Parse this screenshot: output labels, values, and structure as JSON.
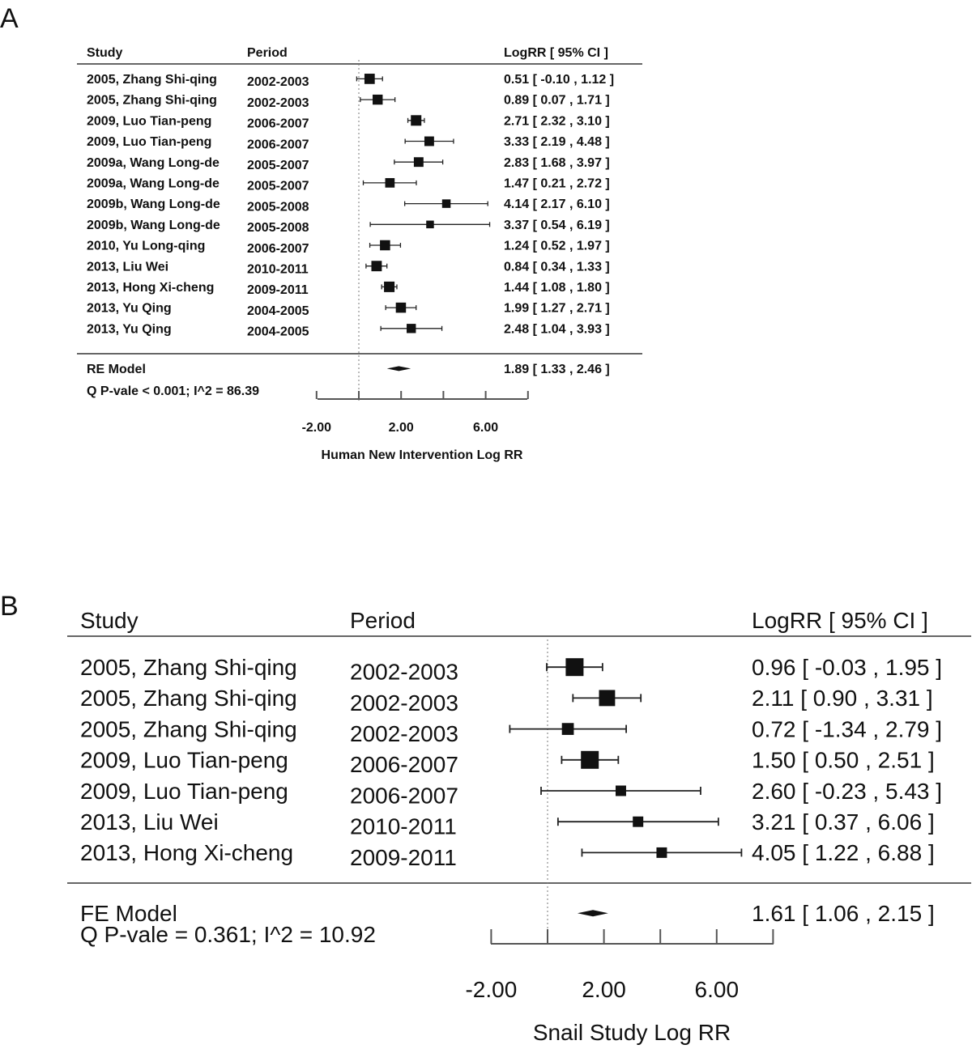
{
  "panels": [
    {
      "letter": "A",
      "headers": {
        "study": "Study",
        "period": "Period",
        "ci": "LogRR [ 95% CI ]"
      },
      "model_label": "RE Model",
      "heterogeneity": "Q P-vale < 0.001;  I^2 = 86.39",
      "model_ci_text": "1.89 [  1.33 , 2.46 ]",
      "axis_title": "Human New Intervention Log RR",
      "axis_ticks": [
        "-2.00",
        "2.00",
        "6.00"
      ]
    },
    {
      "letter": "B",
      "headers": {
        "study": "Study",
        "period": "Period",
        "ci": "LogRR [ 95% CI ]"
      },
      "model_label": "FE Model",
      "heterogeneity": "Q P-vale = 0.361;  I^2 = 10.92",
      "model_ci_text": "1.61 [  1.06 , 2.15 ]",
      "axis_title": "Snail Study Log RR",
      "axis_ticks": [
        "-2.00",
        "2.00",
        "6.00"
      ]
    }
  ],
  "chart_data": [
    {
      "type": "forest",
      "panel": "A",
      "xlabel": "Human New Intervention Log RR",
      "xlim": [
        -2,
        6
      ],
      "tick_values": [
        -2,
        2,
        6
      ],
      "reference_line": 0,
      "studies": [
        {
          "study": "2005, Zhang Shi-qing",
          "period": "2002-2003",
          "est": 0.51,
          "lo": -0.1,
          "hi": 1.12,
          "weight": 8.3,
          "ci_text": "0.51 [ -0.10 , 1.12 ]"
        },
        {
          "study": "2005, Zhang Shi-qing",
          "period": "2002-2003",
          "est": 0.89,
          "lo": 0.07,
          "hi": 1.71,
          "weight": 7.6,
          "ci_text": "0.89 [  0.07 , 1.71 ]"
        },
        {
          "study": "2009, Luo Tian-peng",
          "period": "2006-2007",
          "est": 2.71,
          "lo": 2.32,
          "hi": 3.1,
          "weight": 8.9,
          "ci_text": "2.71 [  2.32 , 3.10 ]"
        },
        {
          "study": "2009, Luo Tian-peng",
          "period": "2006-2007",
          "est": 3.33,
          "lo": 2.19,
          "hi": 4.48,
          "weight": 6.6,
          "ci_text": "3.33 [  2.19 , 4.48 ]"
        },
        {
          "study": "2009a, Wang Long-de",
          "period": "2005-2007",
          "est": 2.83,
          "lo": 1.68,
          "hi": 3.97,
          "weight": 6.6,
          "ci_text": "2.83 [  1.68 , 3.97 ]"
        },
        {
          "study": "2009a, Wang Long-de",
          "period": "2005-2007",
          "est": 1.47,
          "lo": 0.21,
          "hi": 2.72,
          "weight": 6.2,
          "ci_text": "1.47 [  0.21 , 2.72 ]"
        },
        {
          "study": "2009b, Wang Long-de",
          "period": "2005-2008",
          "est": 4.14,
          "lo": 2.17,
          "hi": 6.1,
          "weight": 4.2,
          "ci_text": "4.14 [  2.17 , 6.10 ]"
        },
        {
          "study": "2009b, Wang Long-de",
          "period": "2005-2008",
          "est": 3.37,
          "lo": 0.54,
          "hi": 6.19,
          "weight": 2.8,
          "ci_text": "3.37 [  0.54 , 6.19 ]"
        },
        {
          "study": "2010, Yu Long-qing",
          "period": "2006-2007",
          "est": 1.24,
          "lo": 0.52,
          "hi": 1.97,
          "weight": 7.9,
          "ci_text": "1.24 [  0.52 , 1.97 ]"
        },
        {
          "study": "2013, Liu Wei",
          "period": "2010-2011",
          "est": 0.84,
          "lo": 0.34,
          "hi": 1.33,
          "weight": 8.6,
          "ci_text": "0.84 [  0.34 , 1.33 ]"
        },
        {
          "study": "2013, Hong Xi-cheng",
          "period": "2009-2011",
          "est": 1.44,
          "lo": 1.08,
          "hi": 1.8,
          "weight": 8.9,
          "ci_text": "1.44 [  1.08 , 1.80 ]"
        },
        {
          "study": "2013, Yu Qing",
          "period": "2004-2005",
          "est": 1.99,
          "lo": 1.27,
          "hi": 2.71,
          "weight": 7.9,
          "ci_text": "1.99 [  1.27 , 2.71 ]"
        },
        {
          "study": "2013, Yu Qing",
          "period": "2004-2005",
          "est": 2.48,
          "lo": 1.04,
          "hi": 3.93,
          "weight": 5.7,
          "ci_text": "2.48 [  1.04 , 3.93 ]"
        }
      ],
      "summary": {
        "label": "RE Model",
        "est": 1.89,
        "lo": 1.33,
        "hi": 2.46
      }
    },
    {
      "type": "forest",
      "panel": "B",
      "xlabel": "Snail Study Log RR",
      "xlim": [
        -2,
        8
      ],
      "tick_values": [
        -2,
        2,
        6
      ],
      "reference_line": 0,
      "studies": [
        {
          "study": "2005, Zhang Shi-qing",
          "period": "2002-2003",
          "est": 0.96,
          "lo": -0.03,
          "hi": 1.95,
          "weight": 19.0,
          "ci_text": "0.96 [ -0.03 , 1.95 ]"
        },
        {
          "study": "2005, Zhang Shi-qing",
          "period": "2002-2003",
          "est": 2.11,
          "lo": 0.9,
          "hi": 3.31,
          "weight": 14.0,
          "ci_text": "2.11 [  0.90 , 3.31 ]"
        },
        {
          "study": "2005, Zhang Shi-qing",
          "period": "2002-2003",
          "est": 0.72,
          "lo": -1.34,
          "hi": 2.79,
          "weight": 5.0,
          "ci_text": "0.72 [ -1.34 , 2.79 ]"
        },
        {
          "study": "2009, Luo Tian-peng",
          "period": "2006-2007",
          "est": 1.5,
          "lo": 0.5,
          "hi": 2.51,
          "weight": 19.0,
          "ci_text": "1.50 [  0.50 , 2.51 ]"
        },
        {
          "study": "2009, Luo Tian-peng",
          "period": "2006-2007",
          "est": 2.6,
          "lo": -0.23,
          "hi": 5.43,
          "weight": 3.0,
          "ci_text": "2.60 [ -0.23 , 5.43 ]"
        },
        {
          "study": "2013, Liu Wei",
          "period": "2010-2011",
          "est": 3.21,
          "lo": 0.37,
          "hi": 6.06,
          "weight": 3.0,
          "ci_text": "3.21 [  0.37 , 6.06 ]"
        },
        {
          "study": "2013, Hong Xi-cheng",
          "period": "2009-2011",
          "est": 4.05,
          "lo": 1.22,
          "hi": 6.88,
          "weight": 3.0,
          "ci_text": "4.05 [  1.22 , 6.88 ]"
        }
      ],
      "summary": {
        "label": "FE Model",
        "est": 1.61,
        "lo": 1.06,
        "hi": 2.15
      }
    }
  ]
}
